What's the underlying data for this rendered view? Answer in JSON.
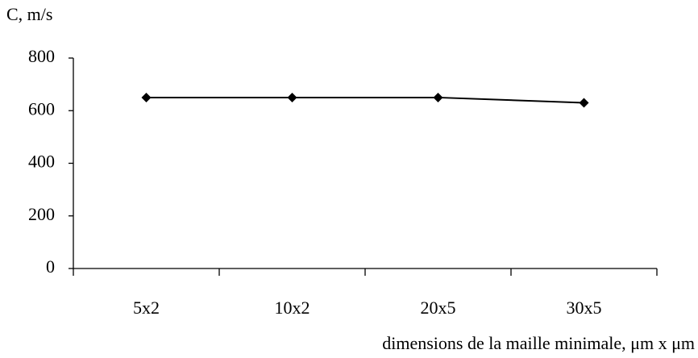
{
  "chart_data": {
    "type": "line",
    "y_axis_label": "C, m/s",
    "x_axis_label": "dimensions de la maille minimale, μm x μm",
    "categories": [
      "5x2",
      "10x2",
      "20x5",
      "30x5"
    ],
    "values": [
      650,
      650,
      650,
      630
    ],
    "color": "#000000",
    "ylim": [
      0,
      800
    ],
    "yticks": [
      0,
      200,
      400,
      600,
      800
    ],
    "grid": false
  }
}
